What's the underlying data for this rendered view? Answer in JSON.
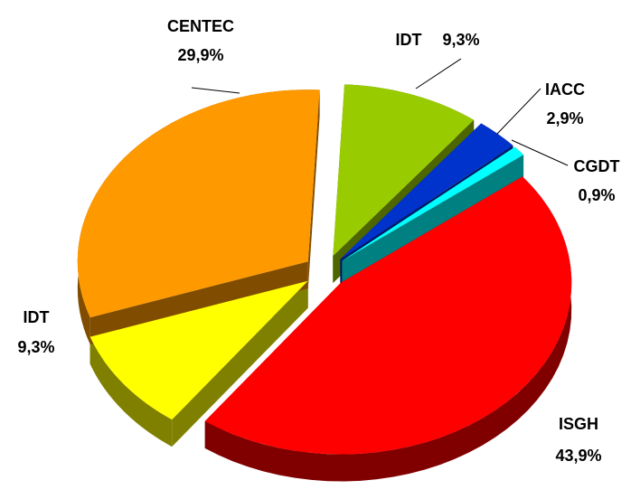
{
  "chart_data": {
    "type": "pie",
    "categories": [
      "IDT",
      "IACC",
      "CGDT",
      "ISGH",
      "IDT",
      "CENTEC"
    ],
    "values": [
      9.3,
      2.9,
      0.9,
      43.9,
      9.3,
      29.9
    ],
    "value_labels": [
      "9,3%",
      "2,9%",
      "0,9%",
      "43,9%",
      "9,3%",
      "29,9%"
    ],
    "colors": [
      "#99cc00",
      "#0033cc",
      "#00ffff",
      "#ff0000",
      "#ffff00",
      "#ff9900"
    ]
  }
}
